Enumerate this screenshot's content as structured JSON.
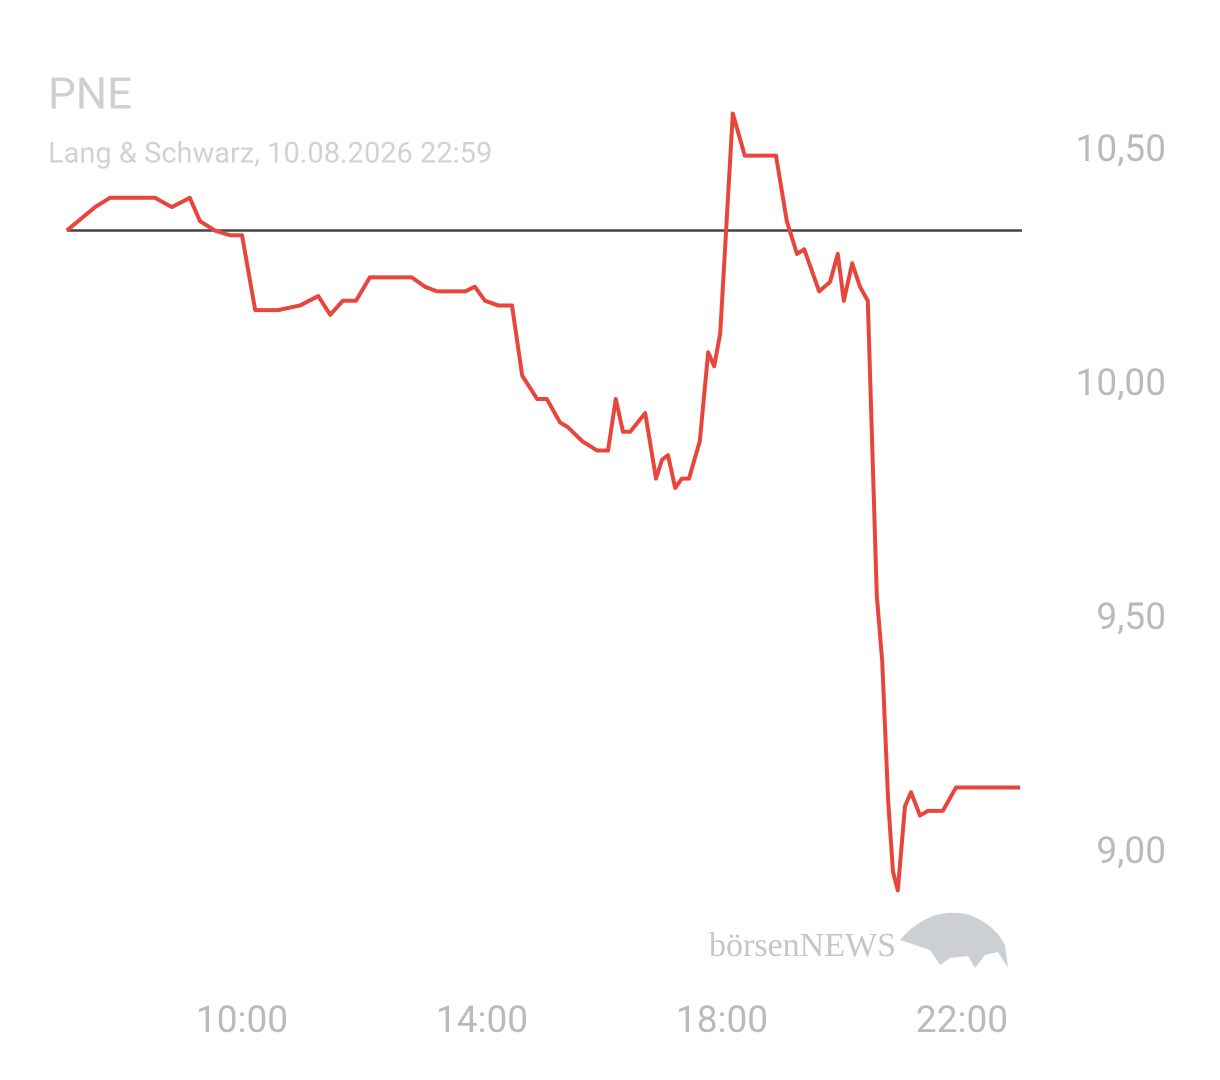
{
  "chart_data": {
    "type": "line",
    "title": "PNE",
    "subtitle": "Lang & Schwarz, 10.08.2026 22:59",
    "watermark": "börsenNEWS",
    "x": [
      7.08,
      7.55,
      7.8,
      8.55,
      8.83,
      9.13,
      9.3,
      9.55,
      9.8,
      10.0,
      10.22,
      10.6,
      10.97,
      11.27,
      11.47,
      11.68,
      11.9,
      12.13,
      12.83,
      13.05,
      13.25,
      13.72,
      13.88,
      14.05,
      14.27,
      14.5,
      14.67,
      14.92,
      15.08,
      15.3,
      15.43,
      15.67,
      15.92,
      16.1,
      16.23,
      16.35,
      16.47,
      16.72,
      16.9,
      17.0,
      17.1,
      17.22,
      17.33,
      17.45,
      17.63,
      17.77,
      17.87,
      17.97,
      18.18,
      18.38,
      18.9,
      19.08,
      19.25,
      19.37,
      19.62,
      19.8,
      19.93,
      20.03,
      20.17,
      20.3,
      20.43,
      20.58,
      20.67,
      20.77,
      20.85,
      20.93,
      21.05,
      21.15,
      21.3,
      21.43,
      21.68,
      21.9,
      22.0,
      22.97
    ],
    "series": [
      {
        "color": "#e8453c",
        "values": [
          10.33,
          10.38,
          10.4,
          10.4,
          10.38,
          10.4,
          10.35,
          10.33,
          10.32,
          10.32,
          10.16,
          10.16,
          10.17,
          10.19,
          10.15,
          10.18,
          10.18,
          10.23,
          10.23,
          10.21,
          10.2,
          10.2,
          10.21,
          10.18,
          10.17,
          10.17,
          10.02,
          9.97,
          9.97,
          9.92,
          9.91,
          9.88,
          9.86,
          9.86,
          9.97,
          9.9,
          9.9,
          9.94,
          9.8,
          9.84,
          9.85,
          9.78,
          9.8,
          9.8,
          9.88,
          10.07,
          10.04,
          10.11,
          10.58,
          10.49,
          10.49,
          10.35,
          10.28,
          10.29,
          10.2,
          10.22,
          10.28,
          10.18,
          10.26,
          10.21,
          10.18,
          9.55,
          9.41,
          9.11,
          8.96,
          8.92,
          9.1,
          9.13,
          9.08,
          9.09,
          9.09,
          9.14,
          9.14,
          9.14
        ]
      }
    ],
    "baseline": 10.33,
    "baseline_color": "#444444",
    "xlim": [
      7,
      23
    ],
    "xticks": [
      {
        "value": 10,
        "label": "10:00"
      },
      {
        "value": 14,
        "label": "14:00"
      },
      {
        "value": 18,
        "label": "18:00"
      },
      {
        "value": 22,
        "label": "22:00"
      }
    ],
    "ylim": [
      8.8,
      10.7
    ],
    "yticks": [
      {
        "value": 9,
        "label": "9,00"
      },
      {
        "value": 9.5,
        "label": "9,50"
      },
      {
        "value": 10,
        "label": "10,00"
      },
      {
        "value": 10.5,
        "label": "10,50"
      }
    ]
  }
}
